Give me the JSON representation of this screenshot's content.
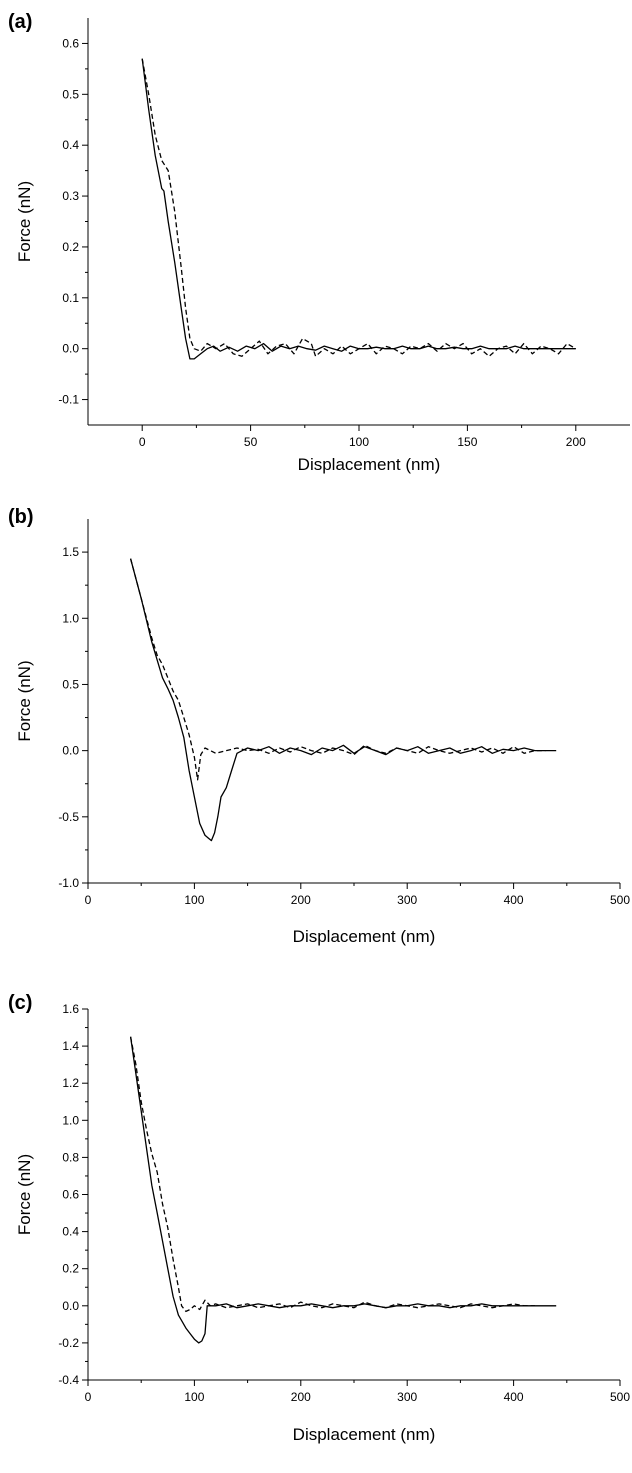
{
  "chart_data": [
    {
      "panel_label": "(a)",
      "type": "line",
      "xlabel": "Displacement (nm)",
      "ylabel": "Force (nN)",
      "xlim": [
        -25,
        225
      ],
      "ylim": [
        -0.15,
        0.65
      ],
      "xticks": [
        0,
        50,
        100,
        150,
        200
      ],
      "yticks": [
        -0.1,
        0.0,
        0.1,
        0.2,
        0.3,
        0.4,
        0.5,
        0.6
      ],
      "ytick_labels": [
        "-0.1",
        "0.0",
        "0.1",
        "0.2",
        "0.3",
        "0.4",
        "0.5",
        "0.6"
      ],
      "grid": false,
      "series": [
        {
          "style": "solid",
          "x": [
            0,
            3,
            6,
            9,
            10,
            12,
            15,
            18,
            20,
            22,
            24,
            27,
            30,
            33,
            36,
            40,
            44,
            48,
            52,
            56,
            60,
            64,
            68,
            72,
            76,
            80,
            84,
            88,
            92,
            96,
            100,
            104,
            108,
            112,
            116,
            120,
            124,
            128,
            132,
            136,
            140,
            144,
            148,
            152,
            156,
            160,
            164,
            168,
            172,
            176,
            180,
            184,
            188,
            192,
            196,
            200
          ],
          "y": [
            0.57,
            0.47,
            0.38,
            0.315,
            0.31,
            0.25,
            0.17,
            0.08,
            0.02,
            -0.02,
            -0.02,
            -0.01,
            0.0,
            0.005,
            -0.005,
            0.003,
            -0.005,
            0.005,
            0.0,
            0.01,
            -0.005,
            0.005,
            0.0,
            0.005,
            0.0,
            -0.003,
            0.005,
            0.0,
            -0.005,
            0.005,
            0.0,
            0.0,
            0.003,
            0.0,
            0.0,
            0.005,
            0.0,
            0.0,
            0.005,
            0.0,
            0.0,
            0.003,
            0.0,
            0.0,
            0.005,
            0.0,
            0.0,
            0.0,
            0.005,
            0.0,
            0.0,
            0.0,
            0.0,
            0.0,
            0.0,
            0.0
          ]
        },
        {
          "style": "dashed",
          "x": [
            0,
            3,
            6,
            9,
            12,
            15,
            18,
            20,
            22,
            24,
            27,
            30,
            34,
            38,
            42,
            46,
            50,
            54,
            58,
            62,
            66,
            70,
            74,
            78,
            80,
            84,
            88,
            92,
            96,
            100,
            104,
            108,
            112,
            116,
            120,
            124,
            128,
            132,
            136,
            140,
            144,
            148,
            152,
            156,
            160,
            164,
            168,
            172,
            176,
            180,
            184,
            188,
            192,
            196,
            200
          ],
          "y": [
            0.57,
            0.5,
            0.42,
            0.37,
            0.35,
            0.27,
            0.16,
            0.08,
            0.02,
            0.0,
            -0.005,
            0.01,
            0.0,
            0.01,
            -0.01,
            -0.015,
            0.0,
            0.015,
            -0.01,
            0.005,
            0.01,
            -0.01,
            0.02,
            0.01,
            -0.015,
            0.0,
            -0.01,
            0.005,
            -0.01,
            0.0,
            0.01,
            -0.01,
            0.005,
            0.0,
            -0.01,
            0.005,
            0.0,
            0.01,
            -0.005,
            0.01,
            0.0,
            0.01,
            -0.01,
            0.0,
            -0.015,
            0.0,
            0.005,
            -0.01,
            0.01,
            -0.01,
            0.005,
            0.0,
            -0.01,
            0.01,
            0.0
          ]
        }
      ]
    },
    {
      "panel_label": "(b)",
      "type": "line",
      "xlabel": "Displacement (nm)",
      "ylabel": "Force (nN)",
      "xlim": [
        0,
        500
      ],
      "ylim": [
        -1.0,
        1.75
      ],
      "xticks": [
        0,
        100,
        200,
        300,
        400,
        500
      ],
      "yticks": [
        -1.0,
        -0.5,
        0.0,
        0.5,
        1.0,
        1.5
      ],
      "ytick_labels": [
        "-1.0",
        "-0.5",
        "0.0",
        "0.5",
        "1.0",
        "1.5"
      ],
      "grid": false,
      "series": [
        {
          "style": "solid",
          "x": [
            40,
            50,
            60,
            70,
            75,
            80,
            85,
            90,
            95,
            100,
            105,
            110,
            113,
            116,
            119,
            122,
            125,
            130,
            135,
            140,
            145,
            150,
            160,
            170,
            180,
            190,
            200,
            210,
            220,
            230,
            240,
            250,
            260,
            270,
            280,
            290,
            300,
            310,
            320,
            330,
            340,
            350,
            360,
            370,
            380,
            390,
            400,
            410,
            420,
            430,
            440
          ],
          "y": [
            1.45,
            1.15,
            0.82,
            0.55,
            0.47,
            0.38,
            0.25,
            0.1,
            -0.15,
            -0.35,
            -0.55,
            -0.64,
            -0.66,
            -0.68,
            -0.62,
            -0.5,
            -0.35,
            -0.28,
            -0.15,
            -0.02,
            0.0,
            0.02,
            0.0,
            0.03,
            -0.02,
            0.02,
            0.0,
            -0.03,
            0.02,
            0.0,
            0.04,
            -0.02,
            0.03,
            0.0,
            -0.03,
            0.02,
            0.0,
            0.03,
            -0.02,
            0.0,
            0.02,
            -0.02,
            0.0,
            0.03,
            -0.02,
            0.01,
            0.0,
            0.02,
            0.0,
            0.0,
            0.0
          ]
        },
        {
          "style": "dashed",
          "x": [
            40,
            50,
            60,
            65,
            70,
            75,
            80,
            85,
            90,
            95,
            100,
            103,
            106,
            110,
            115,
            120,
            130,
            140,
            150,
            160,
            170,
            180,
            190,
            200,
            210,
            220,
            230,
            240,
            250,
            260,
            270,
            280,
            290,
            300,
            310,
            320,
            330,
            340,
            350,
            360,
            370,
            380,
            390,
            400,
            410,
            420,
            430
          ],
          "y": [
            1.45,
            1.15,
            0.85,
            0.72,
            0.65,
            0.55,
            0.45,
            0.38,
            0.25,
            0.12,
            -0.05,
            -0.22,
            -0.03,
            0.02,
            0.0,
            -0.02,
            0.0,
            0.02,
            0.0,
            0.01,
            -0.02,
            0.02,
            -0.01,
            0.03,
            0.0,
            -0.02,
            0.02,
            0.0,
            -0.03,
            0.04,
            0.0,
            -0.02,
            0.02,
            0.0,
            -0.02,
            0.03,
            0.0,
            -0.02,
            0.0,
            0.02,
            -0.01,
            0.02,
            -0.02,
            0.03,
            -0.02,
            0.0,
            0.0
          ]
        }
      ]
    },
    {
      "panel_label": "(c)",
      "type": "line",
      "xlabel": "Displacement (nm)",
      "ylabel": "Force (nN)",
      "xlim": [
        0,
        500
      ],
      "ylim": [
        -0.4,
        1.6
      ],
      "xticks": [
        0,
        100,
        200,
        300,
        400,
        500
      ],
      "yticks": [
        -0.4,
        -0.2,
        0.0,
        0.2,
        0.4,
        0.6,
        0.8,
        1.0,
        1.2,
        1.4,
        1.6
      ],
      "ytick_labels": [
        "-0.4",
        "-0.2",
        "0.0",
        "0.2",
        "0.4",
        "0.6",
        "0.8",
        "1.0",
        "1.2",
        "1.4",
        "1.6"
      ],
      "grid": false,
      "series": [
        {
          "style": "solid",
          "x": [
            40,
            45,
            50,
            55,
            60,
            65,
            70,
            75,
            80,
            85,
            88,
            92,
            96,
            100,
            104,
            107,
            110,
            112,
            120,
            130,
            140,
            150,
            160,
            170,
            180,
            190,
            200,
            210,
            220,
            230,
            240,
            250,
            260,
            270,
            280,
            290,
            300,
            310,
            320,
            330,
            340,
            350,
            360,
            370,
            380,
            390,
            400,
            410,
            420,
            430,
            440
          ],
          "y": [
            1.45,
            1.25,
            1.05,
            0.85,
            0.65,
            0.5,
            0.35,
            0.2,
            0.05,
            -0.05,
            -0.08,
            -0.12,
            -0.15,
            -0.18,
            -0.2,
            -0.19,
            -0.15,
            0.0,
            0.0,
            0.01,
            -0.01,
            0.0,
            0.01,
            0.0,
            -0.01,
            0.0,
            0.0,
            0.01,
            0.0,
            -0.01,
            0.0,
            0.0,
            0.01,
            0.0,
            -0.01,
            0.0,
            0.0,
            0.01,
            0.0,
            0.0,
            -0.01,
            0.0,
            0.0,
            0.01,
            0.0,
            0.0,
            0.0,
            0.0,
            0.0,
            0.0,
            0.0
          ]
        },
        {
          "style": "dashed",
          "x": [
            40,
            45,
            50,
            55,
            60,
            65,
            70,
            75,
            80,
            85,
            88,
            92,
            96,
            100,
            105,
            110,
            115,
            120,
            130,
            140,
            150,
            160,
            170,
            180,
            190,
            200,
            210,
            220,
            230,
            240,
            250,
            260,
            270,
            280,
            290,
            300,
            310,
            320,
            330,
            340,
            350,
            360,
            370,
            380,
            390,
            400,
            410,
            420
          ],
          "y": [
            1.45,
            1.3,
            1.1,
            0.95,
            0.82,
            0.72,
            0.55,
            0.42,
            0.25,
            0.1,
            0.0,
            -0.03,
            -0.02,
            0.0,
            -0.02,
            0.03,
            0.0,
            0.01,
            -0.01,
            0.0,
            0.01,
            -0.01,
            0.0,
            0.01,
            -0.01,
            0.02,
            0.0,
            -0.01,
            0.01,
            0.0,
            -0.01,
            0.02,
            0.0,
            -0.01,
            0.01,
            0.0,
            -0.01,
            0.0,
            0.01,
            0.0,
            -0.01,
            0.01,
            0.0,
            -0.01,
            0.0,
            0.01,
            0.0,
            0.0
          ]
        }
      ]
    }
  ]
}
